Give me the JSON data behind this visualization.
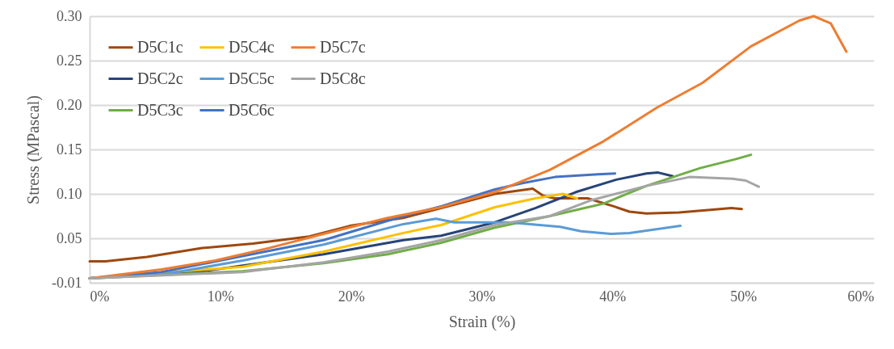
{
  "chart_data": {
    "type": "line",
    "xlabel": "Strain (%)",
    "ylabel": "Stress (MPascal)",
    "xlim": [
      0,
      60
    ],
    "ylim": [
      -0.005,
      0.295
    ],
    "xticks": [
      {
        "value": 0,
        "label": "0%"
      },
      {
        "value": 10,
        "label": "10%"
      },
      {
        "value": 20,
        "label": "20%"
      },
      {
        "value": 30,
        "label": "30%"
      },
      {
        "value": 40,
        "label": "40%"
      },
      {
        "value": 50,
        "label": "50%"
      },
      {
        "value": 60,
        "label": "60%"
      }
    ],
    "yticks": [
      {
        "value": -0.005,
        "label": "-0.01"
      },
      {
        "value": 0.045,
        "label": "0.05"
      },
      {
        "value": 0.095,
        "label": "0.10"
      },
      {
        "value": 0.145,
        "label": "0.15"
      },
      {
        "value": 0.195,
        "label": "0.20"
      },
      {
        "value": 0.245,
        "label": "0.25"
      },
      {
        "value": 0.295,
        "label": "0.30"
      }
    ],
    "grid": "y",
    "legend": "top left",
    "series": [
      {
        "name": "D5C1c",
        "color": "#9e480e",
        "x": [
          0,
          1.2,
          4.4,
          8.6,
          12.5,
          16.8,
          19.9,
          24.0,
          26.9,
          31.0,
          33.9,
          34.7,
          35.6,
          38.1,
          40.1,
          41.3,
          42.6,
          45.1,
          47.5,
          49.1,
          49.9
        ],
        "values": [
          0.019,
          0.019,
          0.024,
          0.034,
          0.039,
          0.047,
          0.059,
          0.068,
          0.079,
          0.095,
          0.101,
          0.093,
          0.09,
          0.09,
          0.081,
          0.075,
          0.073,
          0.074,
          0.077,
          0.079,
          0.078
        ]
      },
      {
        "name": "D5C2c",
        "color": "#264478",
        "x": [
          0,
          8.6,
          17.9,
          24.0,
          26.9,
          31.0,
          34.1,
          37.2,
          40.3,
          42.6,
          43.5,
          44.6
        ],
        "values": [
          0,
          0.008,
          0.027,
          0.043,
          0.048,
          0.063,
          0.079,
          0.097,
          0.111,
          0.118,
          0.119,
          0.115
        ]
      },
      {
        "name": "D5C3c",
        "color": "#70ad47",
        "x": [
          0,
          11.7,
          17.9,
          22.8,
          26.9,
          31.0,
          35.2,
          39.3,
          42.6,
          46.7,
          49.4,
          50.6
        ],
        "values": [
          0,
          0.008,
          0.017,
          0.027,
          0.04,
          0.057,
          0.07,
          0.084,
          0.104,
          0.124,
          0.134,
          0.139
        ]
      },
      {
        "name": "D5C4c",
        "color": "#ffc000",
        "x": [
          0,
          11.7,
          17.9,
          24.0,
          26.9,
          31.0,
          34.1,
          36.2,
          37.3
        ],
        "values": [
          0,
          0.013,
          0.03,
          0.051,
          0.06,
          0.08,
          0.09,
          0.095,
          0.09
        ]
      },
      {
        "name": "D5C5c",
        "color": "#5b9bd5",
        "x": [
          0,
          5.5,
          11.7,
          17.9,
          24.0,
          26.5,
          27.9,
          32.1,
          36.0,
          37.6,
          39.9,
          41.3,
          45.2
        ],
        "values": [
          0,
          0.004,
          0.02,
          0.038,
          0.061,
          0.067,
          0.063,
          0.063,
          0.058,
          0.053,
          0.05,
          0.051,
          0.059
        ]
      },
      {
        "name": "D5C6c",
        "color": "#4472c4",
        "x": [
          0,
          5.5,
          11.7,
          17.9,
          24.0,
          26.9,
          31.0,
          33.1,
          35.6,
          38.9,
          40.2
        ],
        "values": [
          0,
          0.007,
          0.025,
          0.043,
          0.07,
          0.081,
          0.1,
          0.107,
          0.114,
          0.117,
          0.118
        ]
      },
      {
        "name": "D5C7c",
        "color": "#ed7d31",
        "x": [
          0,
          5.5,
          9.6,
          13.7,
          17.9,
          22.8,
          26.9,
          31.0,
          35.2,
          39.3,
          43.4,
          46.9,
          50.6,
          54.3,
          55.4,
          56.7,
          57.9
        ],
        "values": [
          0,
          0.01,
          0.02,
          0.034,
          0.05,
          0.068,
          0.08,
          0.097,
          0.122,
          0.154,
          0.192,
          0.22,
          0.261,
          0.29,
          0.295,
          0.287,
          0.255
        ]
      },
      {
        "name": "D5C8c",
        "color": "#a5a5a5",
        "x": [
          0,
          11.7,
          17.9,
          22.8,
          26.9,
          31.0,
          35.2,
          38.4,
          42.6,
          45.9,
          49.2,
          50.2,
          51.2
        ],
        "values": [
          0,
          0.007,
          0.018,
          0.03,
          0.043,
          0.06,
          0.07,
          0.088,
          0.104,
          0.114,
          0.112,
          0.11,
          0.103
        ]
      }
    ]
  }
}
